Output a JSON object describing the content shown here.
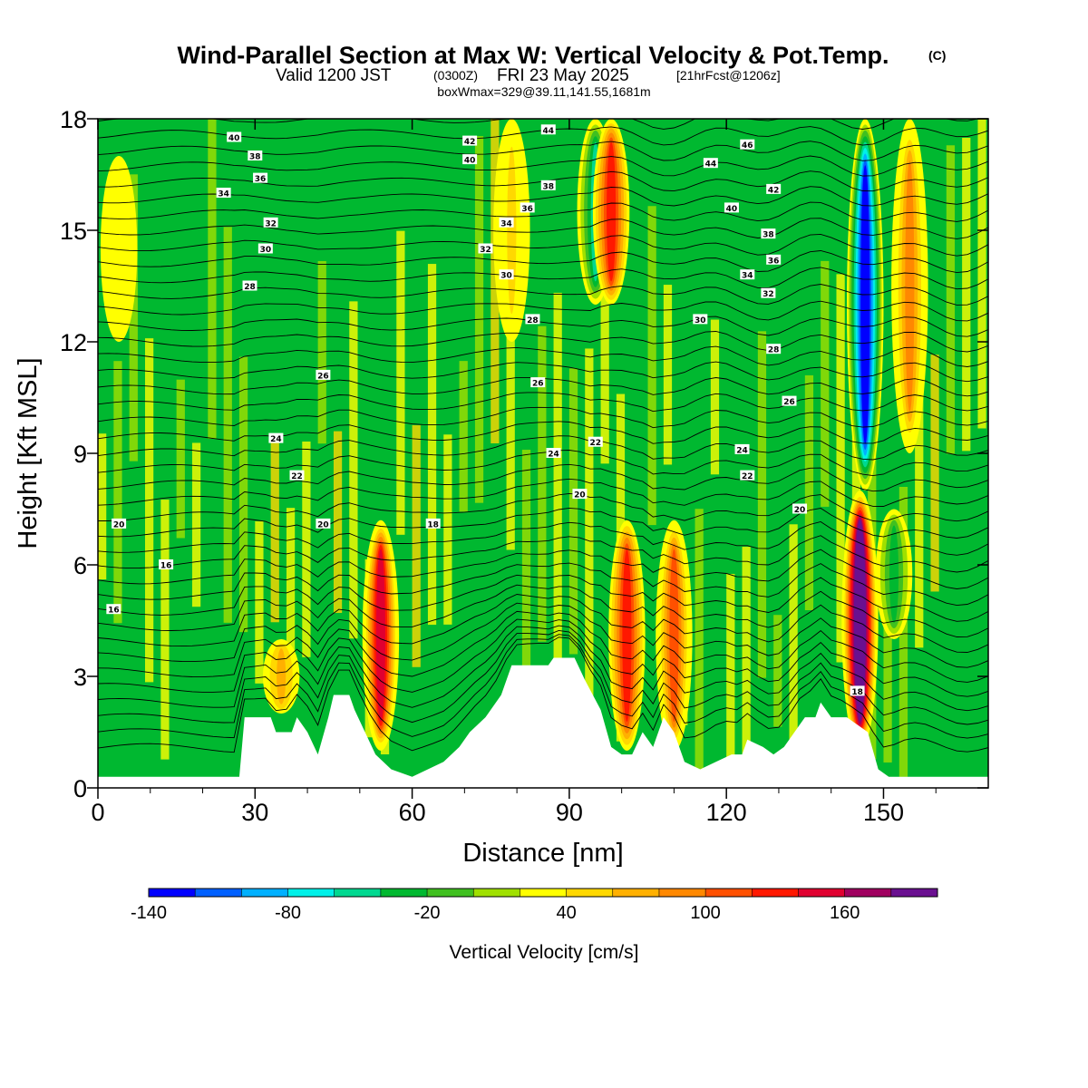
{
  "title": "Wind-Parallel Section at Max W: Vertical Velocity & Pot.Temp.",
  "title_mark": "(C)",
  "subtitle_valid": "Valid 1200 JST",
  "subtitle_utc": "(0300Z)",
  "subtitle_date": "FRI 23 May 2025",
  "subtitle_fcst": "[21hrFcst@1206z]",
  "box_info": "boxWmax=329@39.11,141.55,1681m",
  "colorbar": {
    "label": "Vertical Velocity [cm/s]",
    "tick_labels": [
      "-140",
      "-80",
      "-20",
      "40",
      "100",
      "160"
    ],
    "colors": [
      "#0000ff",
      "#0060ff",
      "#00b0ff",
      "#00f0e8",
      "#00d890",
      "#00b830",
      "#40c020",
      "#a0e000",
      "#ffff00",
      "#ffd800",
      "#ffb000",
      "#ff8800",
      "#ff5000",
      "#ff1800",
      "#e00030",
      "#a00060",
      "#6a1090"
    ]
  },
  "chart_data": {
    "type": "heatmap",
    "xlabel": "Distance [nm]",
    "ylabel": "Height [Kft MSL]",
    "xlim": [
      0,
      170
    ],
    "ylim": [
      0,
      18
    ],
    "x_ticks": [
      "0",
      "30",
      "60",
      "90",
      "120",
      "150"
    ],
    "y_ticks": [
      "0",
      "3",
      "6",
      "9",
      "12",
      "15",
      "18"
    ],
    "field": "Vertical Velocity [cm/s]",
    "contour_field": "Potential Temperature",
    "background_w": -10,
    "features": [
      {
        "x": 4,
        "y_bottom": 12,
        "y_top": 17,
        "w": 0
      },
      {
        "x": 35,
        "y_bottom": 2,
        "y_top": 4,
        "w": 30
      },
      {
        "x": 54,
        "y_bottom": 1,
        "y_top": 7.2,
        "w": 120
      },
      {
        "x": 79,
        "y_bottom": 12,
        "y_top": 18,
        "w": 10
      },
      {
        "x": 95,
        "y_bottom": 13,
        "y_top": 18,
        "w": -90
      },
      {
        "x": 98,
        "y_bottom": 13,
        "y_top": 18,
        "w": 90
      },
      {
        "x": 101,
        "y_bottom": 1,
        "y_top": 7.2,
        "w": 90
      },
      {
        "x": 110,
        "y_bottom": 1,
        "y_top": 7.2,
        "w": 80
      },
      {
        "x": 145.5,
        "y_bottom": 1,
        "y_top": 8,
        "w": 180
      },
      {
        "x": 146.5,
        "y_bottom": 8,
        "y_top": 18,
        "w": -160
      },
      {
        "x": 152,
        "y_bottom": 4,
        "y_top": 7.5,
        "w": -70
      },
      {
        "x": 155,
        "y_bottom": 9,
        "y_top": 18,
        "w": 60
      }
    ],
    "terrain": [
      [
        0,
        0.3
      ],
      [
        27,
        0.3
      ],
      [
        28,
        1.9
      ],
      [
        33,
        1.9
      ],
      [
        34,
        1.5
      ],
      [
        37,
        1.5
      ],
      [
        38,
        1.9
      ],
      [
        40,
        1.5
      ],
      [
        42,
        0.9
      ],
      [
        44,
        1.9
      ],
      [
        45,
        2.5
      ],
      [
        48,
        2.5
      ],
      [
        49,
        2.1
      ],
      [
        51,
        1.5
      ],
      [
        53,
        0.9
      ],
      [
        56,
        0.5
      ],
      [
        60,
        0.3
      ],
      [
        63,
        0.5
      ],
      [
        66,
        0.7
      ],
      [
        69,
        1.1
      ],
      [
        71,
        1.5
      ],
      [
        74,
        1.9
      ],
      [
        77,
        2.5
      ],
      [
        79,
        3.3
      ],
      [
        86,
        3.3
      ],
      [
        87,
        3.5
      ],
      [
        91,
        3.5
      ],
      [
        93,
        2.9
      ],
      [
        96,
        2.1
      ],
      [
        98,
        1.1
      ],
      [
        100,
        0.9
      ],
      [
        102,
        0.9
      ],
      [
        104,
        1.5
      ],
      [
        106,
        1.1
      ],
      [
        108,
        1.9
      ],
      [
        110,
        1.5
      ],
      [
        112,
        0.7
      ],
      [
        115,
        0.5
      ],
      [
        118,
        0.7
      ],
      [
        121,
        0.9
      ],
      [
        123,
        0.9
      ],
      [
        124,
        1.3
      ],
      [
        127,
        1.1
      ],
      [
        129,
        0.9
      ],
      [
        131,
        1.1
      ],
      [
        133,
        1.5
      ],
      [
        135,
        1.9
      ],
      [
        137,
        1.9
      ],
      [
        138,
        2.3
      ],
      [
        140,
        1.9
      ],
      [
        143,
        1.9
      ],
      [
        147,
        1.5
      ],
      [
        149,
        0.5
      ],
      [
        151,
        0.3
      ],
      [
        153,
        0.3
      ],
      [
        170,
        0.3
      ]
    ],
    "theta_labels": [
      {
        "x": 26,
        "y": 17.5,
        "label": "40"
      },
      {
        "x": 30,
        "y": 17.0,
        "label": "38"
      },
      {
        "x": 31,
        "y": 16.4,
        "label": "36"
      },
      {
        "x": 24,
        "y": 16.0,
        "label": "34"
      },
      {
        "x": 33,
        "y": 15.2,
        "label": "32"
      },
      {
        "x": 32,
        "y": 14.5,
        "label": "30"
      },
      {
        "x": 29,
        "y": 13.5,
        "label": "28"
      },
      {
        "x": 43,
        "y": 11.1,
        "label": "26"
      },
      {
        "x": 34,
        "y": 9.4,
        "label": "24"
      },
      {
        "x": 38,
        "y": 8.4,
        "label": "22"
      },
      {
        "x": 43,
        "y": 7.1,
        "label": "20"
      },
      {
        "x": 4,
        "y": 7.1,
        "label": "20"
      },
      {
        "x": 13,
        "y": 6.0,
        "label": "16"
      },
      {
        "x": 3,
        "y": 4.8,
        "label": "16"
      },
      {
        "x": 71,
        "y": 17.4,
        "label": "42"
      },
      {
        "x": 86,
        "y": 17.7,
        "label": "44"
      },
      {
        "x": 71,
        "y": 16.9,
        "label": "40"
      },
      {
        "x": 86,
        "y": 16.2,
        "label": "38"
      },
      {
        "x": 82,
        "y": 15.6,
        "label": "36"
      },
      {
        "x": 78,
        "y": 15.2,
        "label": "34"
      },
      {
        "x": 74,
        "y": 14.5,
        "label": "32"
      },
      {
        "x": 78,
        "y": 13.8,
        "label": "30"
      },
      {
        "x": 83,
        "y": 12.6,
        "label": "28"
      },
      {
        "x": 84,
        "y": 10.9,
        "label": "26"
      },
      {
        "x": 87,
        "y": 9.0,
        "label": "24"
      },
      {
        "x": 95,
        "y": 9.3,
        "label": "22"
      },
      {
        "x": 92,
        "y": 7.9,
        "label": "20"
      },
      {
        "x": 64,
        "y": 7.1,
        "label": "18"
      },
      {
        "x": 124,
        "y": 17.3,
        "label": "46"
      },
      {
        "x": 117,
        "y": 16.8,
        "label": "44"
      },
      {
        "x": 129,
        "y": 16.1,
        "label": "42"
      },
      {
        "x": 121,
        "y": 15.6,
        "label": "40"
      },
      {
        "x": 128,
        "y": 14.9,
        "label": "38"
      },
      {
        "x": 129,
        "y": 14.2,
        "label": "36"
      },
      {
        "x": 124,
        "y": 13.8,
        "label": "34"
      },
      {
        "x": 128,
        "y": 13.3,
        "label": "32"
      },
      {
        "x": 115,
        "y": 12.6,
        "label": "30"
      },
      {
        "x": 129,
        "y": 11.8,
        "label": "28"
      },
      {
        "x": 132,
        "y": 10.4,
        "label": "26"
      },
      {
        "x": 123,
        "y": 9.1,
        "label": "24"
      },
      {
        "x": 124,
        "y": 8.4,
        "label": "22"
      },
      {
        "x": 134,
        "y": 7.5,
        "label": "20"
      },
      {
        "x": 145,
        "y": 2.6,
        "label": "18"
      }
    ]
  }
}
